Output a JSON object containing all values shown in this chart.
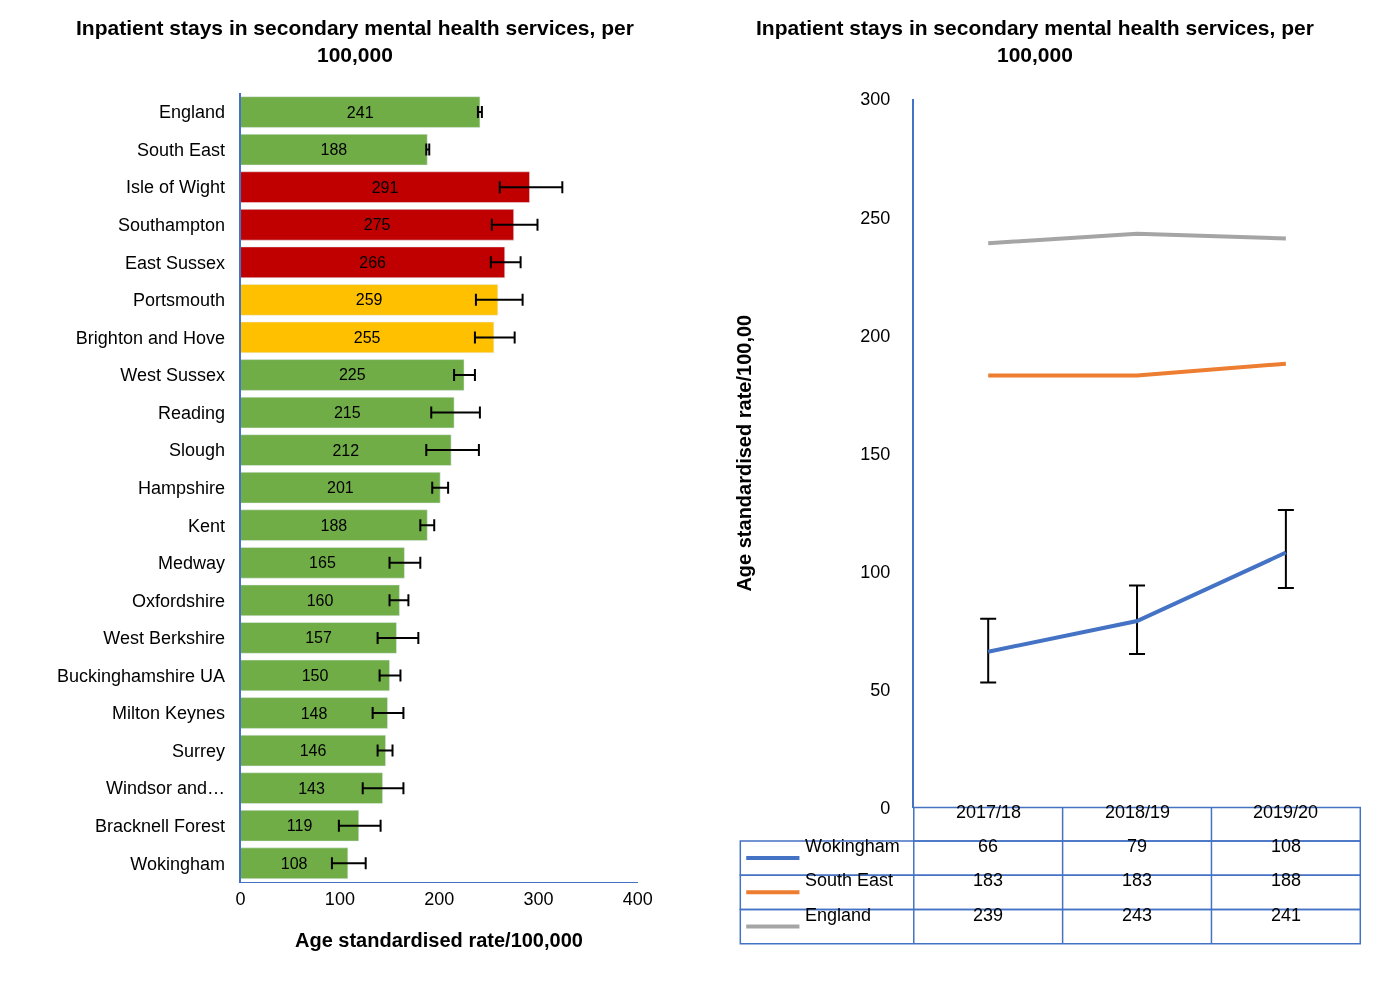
{
  "chart_data": [
    {
      "type": "bar",
      "orientation": "horizontal",
      "title": "Inpatient stays in secondary mental health services, per 100,000",
      "xlabel": "Age standardised rate/100,000",
      "categories": [
        "England",
        "South East",
        "Isle of Wight",
        "Southampton",
        "East Sussex",
        "Portsmouth",
        "Brighton and Hove",
        "West Sussex",
        "Reading",
        "Slough",
        "Hampshire",
        "Kent",
        "Medway",
        "Oxfordshire",
        "West Berkshire",
        "Buckinghamshire UA",
        "Milton Keynes",
        "Surrey",
        "Windsor and…",
        "Bracknell Forest",
        "Wokingham"
      ],
      "values": [
        241,
        188,
        291,
        275,
        266,
        259,
        255,
        225,
        215,
        212,
        201,
        188,
        165,
        160,
        157,
        150,
        148,
        146,
        143,
        119,
        108
      ],
      "colors": [
        "#70ad47",
        "#70ad47",
        "#c00000",
        "#c00000",
        "#c00000",
        "#ffc000",
        "#ffc000",
        "#70ad47",
        "#70ad47",
        "#70ad47",
        "#70ad47",
        "#70ad47",
        "#70ad47",
        "#70ad47",
        "#70ad47",
        "#70ad47",
        "#70ad47",
        "#70ad47",
        "#70ad47",
        "#70ad47",
        "#70ad47"
      ],
      "errors": [
        [
          239,
          243
        ],
        [
          187,
          190
        ],
        [
          261,
          324
        ],
        [
          253,
          299
        ],
        [
          252,
          282
        ],
        [
          237,
          284
        ],
        [
          236,
          276
        ],
        [
          215,
          236
        ],
        [
          192,
          241
        ],
        [
          187,
          240
        ],
        [
          193,
          209
        ],
        [
          181,
          195
        ],
        [
          150,
          181
        ],
        [
          150,
          169
        ],
        [
          138,
          179
        ],
        [
          140,
          161
        ],
        [
          133,
          164
        ],
        [
          138,
          153
        ],
        [
          123,
          164
        ],
        [
          99,
          141
        ],
        [
          92,
          126
        ]
      ],
      "xlim": [
        0,
        400
      ],
      "xticks": [
        0,
        100,
        200,
        300,
        400
      ],
      "data_labels": true,
      "grid": false
    },
    {
      "type": "line",
      "title": "Inpatient stays in secondary mental health services, per 100,000",
      "ylabel": "Age standardised rate/100,00",
      "categories": [
        "2017/18",
        "2018/19",
        "2019/20"
      ],
      "series": [
        {
          "name": "Wokingham",
          "color": "#4472c4",
          "values": [
            66,
            79,
            108
          ],
          "errors": [
            [
              53,
              80
            ],
            [
              65,
              94
            ],
            [
              93,
              126
            ]
          ]
        },
        {
          "name": "South East",
          "color": "#ed7d31",
          "values": [
            183,
            183,
            188
          ]
        },
        {
          "name": "England",
          "color": "#a5a5a5",
          "values": [
            239,
            243,
            241
          ]
        }
      ],
      "ylim": [
        0,
        300
      ],
      "yticks": [
        0,
        50,
        100,
        150,
        200,
        250,
        300
      ],
      "data_labels": true,
      "grid": false,
      "legend": "bottom",
      "marker": "none",
      "line_style": "solid"
    }
  ]
}
